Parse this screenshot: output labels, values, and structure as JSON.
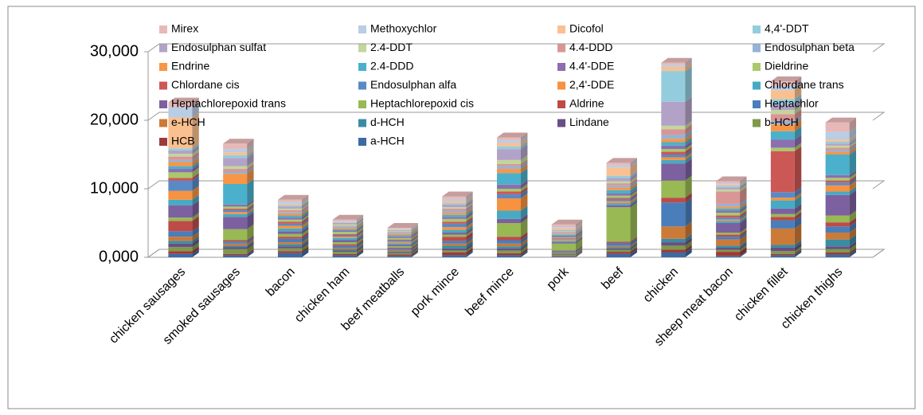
{
  "chart_data": {
    "type": "bar",
    "stacked": true,
    "categories": [
      "chicken sausages",
      "smoked sausages",
      "bacon",
      "chicken ham",
      "beef meatballs",
      "pork mince",
      "beef mince",
      "pork",
      "beef",
      "chicken",
      "sheep meat bacon",
      "chicken fillet",
      "chicken thighs"
    ],
    "series": [
      {
        "name": "a-HCH",
        "color": "#3c6aa4",
        "values": [
          500,
          300,
          600,
          300,
          200,
          300,
          300,
          100,
          500,
          700,
          200,
          300,
          400
        ]
      },
      {
        "name": "HCB",
        "color": "#9e3b38",
        "values": [
          400,
          200,
          300,
          200,
          200,
          400,
          300,
          100,
          300,
          400,
          600,
          200,
          300
        ]
      },
      {
        "name": "b-HCH",
        "color": "#7f9a48",
        "values": [
          600,
          700,
          400,
          300,
          200,
          300,
          400,
          200,
          300,
          600,
          300,
          400,
          500
        ]
      },
      {
        "name": "Lindane",
        "color": "#684f86",
        "values": [
          500,
          300,
          300,
          200,
          150,
          300,
          300,
          100,
          200,
          500,
          300,
          500,
          400
        ]
      },
      {
        "name": "d-HCH",
        "color": "#3a8ca3",
        "values": [
          400,
          200,
          300,
          200,
          150,
          400,
          300,
          100,
          200,
          500,
          300,
          400,
          1000
        ]
      },
      {
        "name": "e-HCH",
        "color": "#cc7a37",
        "values": [
          600,
          300,
          300,
          200,
          150,
          300,
          400,
          100,
          200,
          1800,
          900,
          2400,
          1000
        ]
      },
      {
        "name": "Heptachlor",
        "color": "#4a7ebb",
        "values": [
          800,
          300,
          500,
          300,
          200,
          400,
          500,
          200,
          400,
          3500,
          400,
          1200,
          900
        ]
      },
      {
        "name": "Aldrine",
        "color": "#be4b48",
        "values": [
          1500,
          200,
          300,
          200,
          150,
          600,
          500,
          100,
          200,
          700,
          300,
          500,
          600
        ]
      },
      {
        "name": "Heptachlorepoxid cis",
        "color": "#98b954",
        "values": [
          500,
          1600,
          400,
          300,
          200,
          300,
          2000,
          1000,
          5000,
          2500,
          300,
          400,
          1000
        ]
      },
      {
        "name": "Heptachlorepoxid trans",
        "color": "#7d60a0",
        "values": [
          1800,
          1800,
          400,
          300,
          200,
          300,
          600,
          200,
          300,
          2500,
          1400,
          800,
          3000
        ]
      },
      {
        "name": "Chlordane trans",
        "color": "#46aac5",
        "values": [
          800,
          400,
          400,
          300,
          250,
          400,
          1200,
          200,
          300,
          500,
          300,
          1200,
          500
        ]
      },
      {
        "name": "2,4'-DDE",
        "color": "#f69240",
        "values": [
          1300,
          300,
          400,
          200,
          200,
          400,
          1800,
          200,
          300,
          400,
          200,
          400,
          900
        ]
      },
      {
        "name": "Endosulphan alfa",
        "color": "#5a8ac6",
        "values": [
          1500,
          300,
          300,
          200,
          200,
          500,
          600,
          100,
          300,
          400,
          300,
          800,
          400
        ]
      },
      {
        "name": "Chlordane cis",
        "color": "#cc5855",
        "values": [
          400,
          200,
          300,
          200,
          150,
          300,
          400,
          100,
          200,
          400,
          300,
          6000,
          300
        ]
      },
      {
        "name": "Dieldrine",
        "color": "#a9c96a",
        "values": [
          800,
          300,
          300,
          300,
          200,
          400,
          400,
          100,
          300,
          400,
          400,
          500,
          400
        ]
      },
      {
        "name": "4.4'-DDE",
        "color": "#8b6fb0",
        "values": [
          500,
          300,
          300,
          200,
          200,
          300,
          600,
          200,
          300,
          500,
          300,
          1200,
          400
        ]
      },
      {
        "name": "2.4-DDD",
        "color": "#4bb0cc",
        "values": [
          400,
          3000,
          300,
          200,
          200,
          300,
          1700,
          200,
          500,
          500,
          300,
          1200,
          3000
        ]
      },
      {
        "name": "Endrine",
        "color": "#f79646",
        "values": [
          600,
          1500,
          300,
          200,
          200,
          300,
          600,
          100,
          400,
          500,
          300,
          1000,
          400
        ]
      },
      {
        "name": "Endosulphan beta",
        "color": "#95b3d7",
        "values": [
          300,
          300,
          200,
          200,
          150,
          300,
          400,
          100,
          300,
          600,
          400,
          500,
          300
        ]
      },
      {
        "name": "4.4-DDD",
        "color": "#d99694",
        "values": [
          500,
          400,
          300,
          100,
          150,
          300,
          300,
          200,
          300,
          800,
          1800,
          1000,
          300
        ]
      },
      {
        "name": "2.4-DDT",
        "color": "#c3d69b",
        "values": [
          400,
          400,
          200,
          200,
          100,
          200,
          600,
          100,
          300,
          500,
          300,
          600,
          300
        ]
      },
      {
        "name": "Endosulphan sulfat",
        "color": "#b3a2c7",
        "values": [
          500,
          1200,
          300,
          200,
          100,
          400,
          1600,
          100,
          500,
          3500,
          300,
          800,
          300
        ]
      },
      {
        "name": "4,4'-DDT",
        "color": "#93cddd",
        "values": [
          300,
          400,
          200,
          100,
          100,
          200,
          400,
          100,
          300,
          4500,
          200,
          800,
          300
        ]
      },
      {
        "name": "Dicofol",
        "color": "#fac090",
        "values": [
          4500,
          400,
          200,
          100,
          100,
          300,
          500,
          200,
          1200,
          600,
          200,
          1300,
          300
        ]
      },
      {
        "name": "Methoxychlor",
        "color": "#b9cde5",
        "values": [
          1500,
          500,
          300,
          100,
          100,
          300,
          400,
          200,
          300,
          300,
          200,
          600,
          1100
        ]
      },
      {
        "name": "Mirex",
        "color": "#e6b9b8",
        "values": [
          700,
          800,
          300,
          200,
          100,
          400,
          400,
          400,
          400,
          300,
          300,
          700,
          1400
        ]
      }
    ],
    "ylim": [
      0,
      30000
    ],
    "yticks": [
      {
        "value": 0,
        "label": "0,000"
      },
      {
        "value": 10000,
        "label": "10,000"
      },
      {
        "value": 20000,
        "label": "20,000"
      },
      {
        "value": 30000,
        "label": "30,000"
      }
    ],
    "grid": true
  }
}
